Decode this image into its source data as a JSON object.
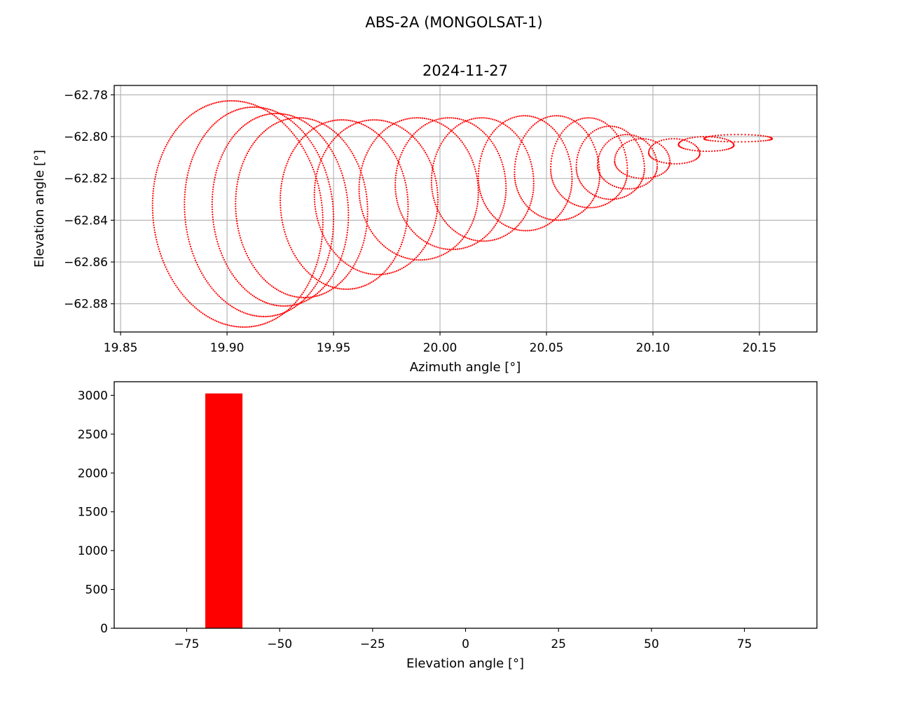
{
  "figure": {
    "suptitle": "ABS-2A (MONGOLSAT-1)"
  },
  "colors": {
    "series": "#ff0000",
    "grid": "#b0b0b0",
    "axes": "#000000"
  },
  "chart_data": [
    {
      "type": "scatter",
      "title": "2024-11-27",
      "xlabel": "Azimuth angle [°]",
      "ylabel": "Elevation angle [°]",
      "xlim": [
        19.847,
        20.177
      ],
      "ylim": [
        -62.8935,
        -62.7755
      ],
      "xticks": [
        19.85,
        19.9,
        19.95,
        20.0,
        20.05,
        20.1,
        20.15
      ],
      "xtick_labels": [
        "19.85",
        "19.90",
        "19.95",
        "20.00",
        "20.05",
        "20.10",
        "20.15"
      ],
      "yticks": [
        -62.78,
        -62.8,
        -62.82,
        -62.84,
        -62.86,
        -62.88
      ],
      "ytick_labels": [
        "−62.78",
        "−62.80",
        "−62.82",
        "−62.84",
        "−62.86",
        "−62.88"
      ],
      "grid": true,
      "marker": "dotted points",
      "series": [
        {
          "loops": [
            {
              "cx": 19.905,
              "cy": -62.837,
              "rx": 0.04,
              "ryTop": 0.054,
              "ryBot": 0.054,
              "tilt": -0.1
            },
            {
              "cx": 19.915,
              "cy": -62.836,
              "rx": 0.035,
              "ryTop": 0.05,
              "ryBot": 0.05,
              "tilt": -0.1
            },
            {
              "cx": 19.925,
              "cy": -62.835,
              "rx": 0.032,
              "ryTop": 0.046,
              "ryBot": 0.046,
              "tilt": -0.08
            },
            {
              "cx": 19.935,
              "cy": -62.834,
              "rx": 0.031,
              "ryTop": 0.043,
              "ryBot": 0.043,
              "tilt": -0.06
            },
            {
              "cx": 19.955,
              "cy": -62.832,
              "rx": 0.03,
              "ryTop": 0.04,
              "ryBot": 0.041,
              "tilt": -0.05
            },
            {
              "cx": 19.97,
              "cy": -62.829,
              "rx": 0.029,
              "ryTop": 0.037,
              "ryBot": 0.037,
              "tilt": -0.04
            },
            {
              "cx": 19.99,
              "cy": -62.826,
              "rx": 0.028,
              "ryTop": 0.035,
              "ryBot": 0.033,
              "tilt": -0.03
            },
            {
              "cx": 20.005,
              "cy": -62.824,
              "rx": 0.026,
              "ryTop": 0.033,
              "ryBot": 0.03,
              "tilt": -0.03
            },
            {
              "cx": 20.02,
              "cy": -62.822,
              "rx": 0.024,
              "ryTop": 0.031,
              "ryBot": 0.028,
              "tilt": -0.02
            },
            {
              "cx": 20.04,
              "cy": -62.82,
              "rx": 0.022,
              "ryTop": 0.03,
              "ryBot": 0.025,
              "tilt": -0.02
            },
            {
              "cx": 20.055,
              "cy": -62.818,
              "rx": 0.02,
              "ryTop": 0.028,
              "ryBot": 0.022,
              "tilt": -0.02
            },
            {
              "cx": 20.07,
              "cy": -62.816,
              "rx": 0.018,
              "ryTop": 0.025,
              "ryBot": 0.018,
              "tilt": -0.02
            },
            {
              "cx": 20.08,
              "cy": -62.815,
              "rx": 0.016,
              "ryTop": 0.02,
              "ryBot": 0.015,
              "tilt": -0.02
            },
            {
              "cx": 20.088,
              "cy": -62.814,
              "rx": 0.014,
              "ryTop": 0.015,
              "ryBot": 0.011,
              "tilt": -0.02
            },
            {
              "cx": 20.095,
              "cy": -62.812,
              "rx": 0.013,
              "ryTop": 0.011,
              "ryBot": 0.008,
              "tilt": -0.02
            },
            {
              "cx": 20.11,
              "cy": -62.808,
              "rx": 0.012,
              "ryTop": 0.007,
              "ryBot": 0.005,
              "tilt": -0.02
            },
            {
              "cx": 20.125,
              "cy": -62.804,
              "rx": 0.013,
              "ryTop": 0.004,
              "ryBot": 0.003,
              "tilt": -0.01
            },
            {
              "cx": 20.14,
              "cy": -62.801,
              "rx": 0.016,
              "ryTop": 0.002,
              "ryBot": 0.0015,
              "tilt": 0.0
            }
          ]
        }
      ]
    },
    {
      "type": "bar",
      "title": "",
      "xlabel": "Elevation angle [°]",
      "ylabel": "",
      "xlim": [
        -94.5,
        94.5
      ],
      "ylim": [
        0,
        3175
      ],
      "xticks": [
        -75,
        -50,
        -25,
        0,
        25,
        50,
        75
      ],
      "xtick_labels": [
        "−75",
        "−50",
        "−25",
        "0",
        "25",
        "50",
        "75"
      ],
      "yticks": [
        0,
        500,
        1000,
        1500,
        2000,
        2500,
        3000
      ],
      "ytick_labels": [
        "0",
        "500",
        "1000",
        "1500",
        "2000",
        "2500",
        "3000"
      ],
      "grid": false,
      "bins": [
        {
          "x0": -70,
          "x1": -60,
          "value": 3024
        }
      ]
    }
  ]
}
